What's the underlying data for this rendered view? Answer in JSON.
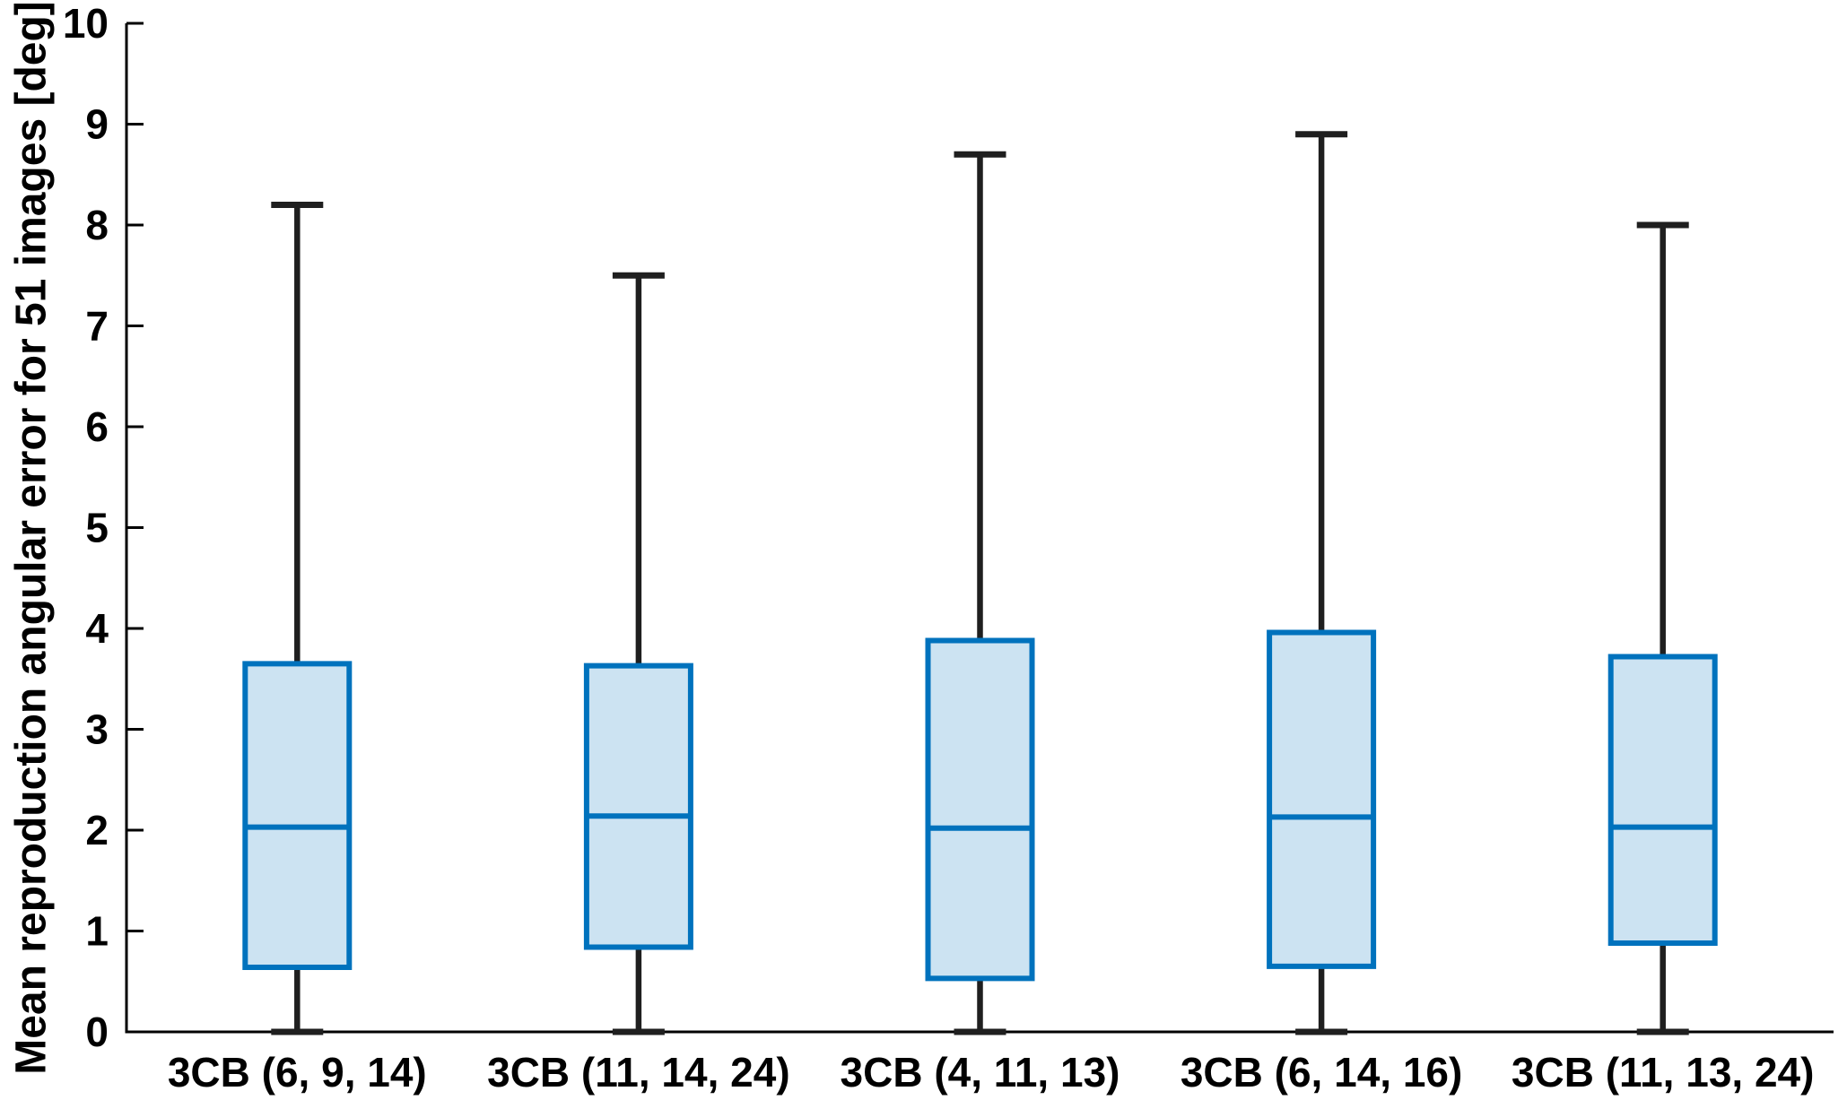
{
  "figure": {
    "background": "#ffffff"
  },
  "chart_data": {
    "type": "box",
    "title": "",
    "xlabel": "",
    "ylabel": "Mean reproduction angular error for 51 images [deg]",
    "ylim": [
      0,
      10
    ],
    "ytick_values": [
      0,
      1,
      2,
      3,
      4,
      5,
      6,
      7,
      8,
      9,
      10
    ],
    "ytick_labels": [
      "0",
      "1",
      "2",
      "3",
      "4",
      "5",
      "6",
      "7",
      "8",
      "9",
      "10"
    ],
    "grid": false,
    "legend": "none",
    "categories": [
      "3CB (6, 9, 14)",
      "3CB (11, 14, 24)",
      "3CB (4, 11, 13)",
      "3CB (6, 14, 16)",
      "3CB (11, 13, 24)"
    ],
    "series": [
      {
        "category": "3CB (6, 9, 14)",
        "whisker_low": 0,
        "q1": 0.64,
        "median": 2.03,
        "q3": 3.65,
        "whisker_high": 8.2
      },
      {
        "category": "3CB (11, 14, 24)",
        "whisker_low": 0,
        "q1": 0.84,
        "median": 2.14,
        "q3": 3.63,
        "whisker_high": 7.5
      },
      {
        "category": "3CB (4, 11, 13)",
        "whisker_low": 0,
        "q1": 0.53,
        "median": 2.02,
        "q3": 3.88,
        "whisker_high": 8.7
      },
      {
        "category": "3CB (6, 14, 16)",
        "whisker_low": 0,
        "q1": 0.65,
        "median": 2.13,
        "q3": 3.96,
        "whisker_high": 8.9
      },
      {
        "category": "3CB (11, 13, 24)",
        "whisker_low": 0,
        "q1": 0.88,
        "median": 2.03,
        "q3": 3.72,
        "whisker_high": 8.0
      }
    ],
    "style": {
      "box_edge_color": "#0072BD",
      "box_fill_color": "#CCE3F2",
      "median_color": "#0072BD",
      "whisker_color": "#1f1f1f",
      "axis_color": "#000000",
      "text_color": "#000000"
    }
  }
}
